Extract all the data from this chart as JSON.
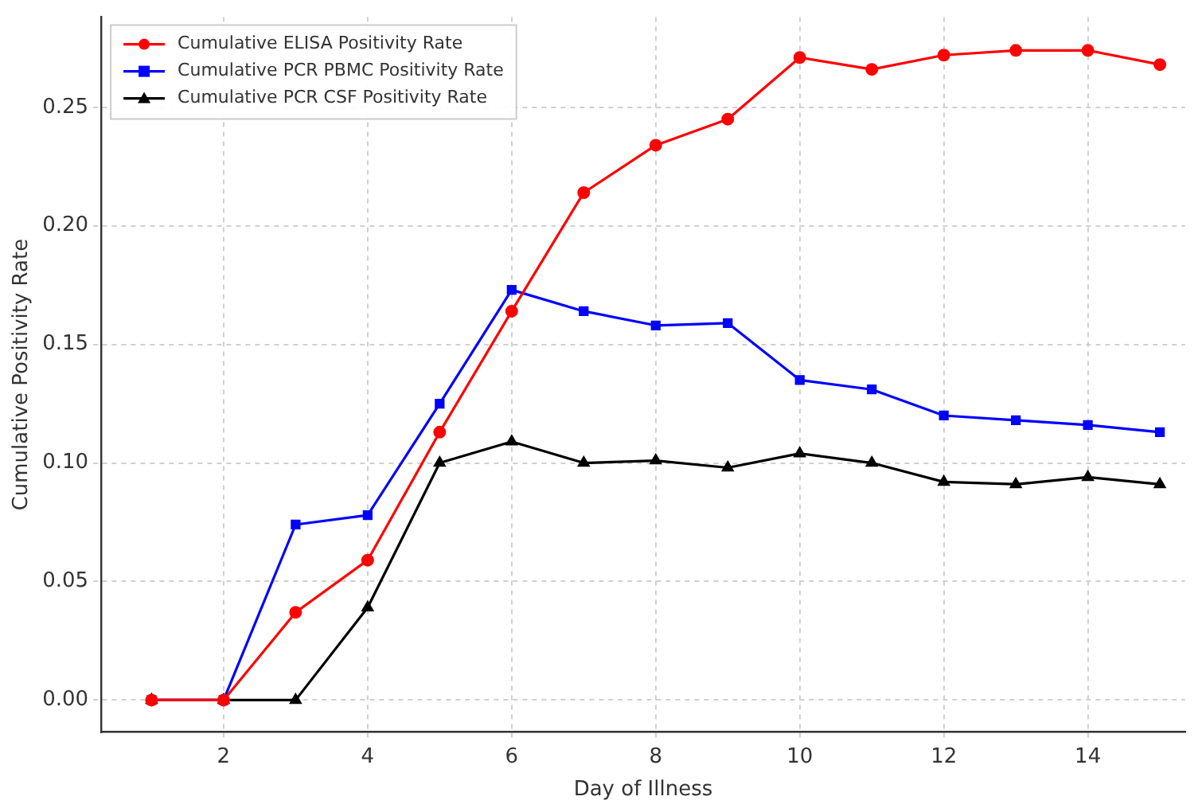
{
  "chart_data": {
    "type": "line",
    "xlabel": "Day of Illness",
    "ylabel": "Cumulative Positivity Rate",
    "x": [
      1,
      2,
      3,
      4,
      5,
      6,
      7,
      8,
      9,
      10,
      11,
      12,
      13,
      14,
      15
    ],
    "series": [
      {
        "name": "Cumulative ELISA Positivity Rate",
        "color": "#ff0000",
        "marker": "circle",
        "values": [
          0,
          0,
          0.037,
          0.059,
          0.113,
          0.164,
          0.214,
          0.234,
          0.245,
          0.271,
          0.266,
          0.272,
          0.274,
          0.274,
          0.268
        ]
      },
      {
        "name": "Cumulative PCR PBMC Positivity Rate",
        "color": "#0000ff",
        "marker": "square",
        "values": [
          0,
          0,
          0.074,
          0.078,
          0.125,
          0.173,
          0.164,
          0.158,
          0.159,
          0.135,
          0.131,
          0.12,
          0.118,
          0.116,
          0.113
        ]
      },
      {
        "name": "Cumulative PCR CSF Positivity Rate",
        "color": "#000000",
        "marker": "triangle",
        "values": [
          0,
          0,
          0,
          0.039,
          0.1,
          0.109,
          0.1,
          0.101,
          0.098,
          0.104,
          0.1,
          0.092,
          0.091,
          0.094,
          0.091
        ]
      }
    ],
    "xlim": [
      0.3,
      15.35
    ],
    "ylim": [
      -0.0135,
      0.288
    ],
    "xticks": [
      2,
      4,
      6,
      8,
      10,
      12,
      14
    ],
    "yticks": [
      {
        "value": 0,
        "label": "0.00"
      },
      {
        "value": 0.05,
        "label": "0.05"
      },
      {
        "value": 0.1,
        "label": "0.10"
      },
      {
        "value": 0.15,
        "label": "0.15"
      },
      {
        "value": 0.2,
        "label": "0.20"
      },
      {
        "value": 0.25,
        "label": "0.25"
      }
    ],
    "grid": true,
    "legend": "top left",
    "line_style": "solid"
  }
}
